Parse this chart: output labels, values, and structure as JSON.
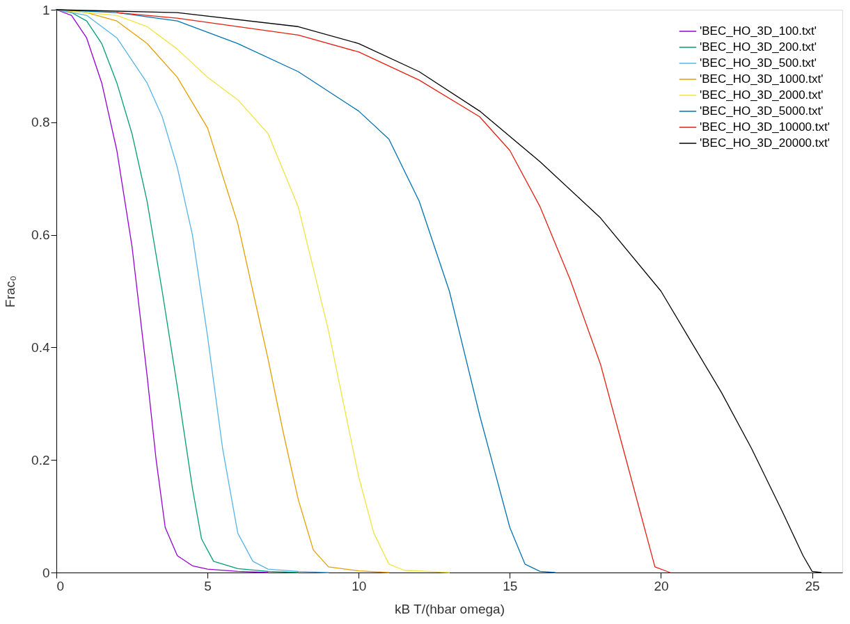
{
  "chart_data": {
    "type": "line",
    "xlabel": "kB T/(hbar omega)",
    "ylabel": "Frac₀",
    "xlim": [
      0,
      26
    ],
    "ylim": [
      0,
      1
    ],
    "xticks": [
      0,
      5,
      10,
      15,
      20,
      25
    ],
    "yticks": [
      0,
      0.2,
      0.4,
      0.6,
      0.8,
      1
    ],
    "legend": "top right",
    "series": [
      {
        "name": "'BEC_HO_3D_100.txt'",
        "color": "#9400d3",
        "x": [
          0,
          0.5,
          1,
          1.5,
          2,
          2.5,
          3,
          3.3,
          3.6,
          4,
          4.5,
          5,
          6,
          7
        ],
        "values": [
          1,
          0.99,
          0.95,
          0.87,
          0.75,
          0.58,
          0.35,
          0.2,
          0.08,
          0.03,
          0.012,
          0.006,
          0.002,
          0
        ]
      },
      {
        "name": "'BEC_HO_3D_200.txt'",
        "color": "#009e73",
        "x": [
          0,
          0.5,
          1,
          1.5,
          2,
          2.5,
          3,
          3.5,
          4,
          4.5,
          4.8,
          5.2,
          6,
          7,
          8
        ],
        "values": [
          1,
          0.995,
          0.98,
          0.94,
          0.87,
          0.78,
          0.66,
          0.5,
          0.33,
          0.15,
          0.06,
          0.02,
          0.007,
          0.002,
          0
        ]
      },
      {
        "name": "'BEC_HO_3D_500.txt'",
        "color": "#56b4e9",
        "x": [
          0,
          1,
          2,
          3,
          3.5,
          4,
          4.5,
          5,
          5.5,
          6,
          6.5,
          7,
          8,
          9
        ],
        "values": [
          1,
          0.99,
          0.95,
          0.87,
          0.81,
          0.72,
          0.6,
          0.42,
          0.22,
          0.07,
          0.02,
          0.006,
          0.002,
          0
        ]
      },
      {
        "name": "'BEC_HO_3D_1000.txt'",
        "color": "#e69f00",
        "x": [
          0,
          1,
          2,
          3,
          4,
          5,
          6,
          7,
          7.5,
          8,
          8.5,
          9,
          10,
          11
        ],
        "values": [
          1,
          0.995,
          0.98,
          0.94,
          0.88,
          0.79,
          0.62,
          0.38,
          0.25,
          0.13,
          0.04,
          0.01,
          0.003,
          0
        ]
      },
      {
        "name": "'BEC_HO_3D_2000.txt'",
        "color": "#f0e442",
        "x": [
          0,
          2,
          3,
          4,
          5,
          6,
          7,
          8,
          9,
          9.5,
          10,
          10.5,
          11,
          11.5,
          13
        ],
        "values": [
          1,
          0.99,
          0.97,
          0.93,
          0.88,
          0.84,
          0.78,
          0.65,
          0.43,
          0.3,
          0.17,
          0.07,
          0.015,
          0.004,
          0
        ]
      },
      {
        "name": "'BEC_HO_3D_5000.txt'",
        "color": "#0072b2",
        "x": [
          0,
          2,
          4,
          6,
          8,
          10,
          11,
          12,
          13,
          14,
          14.5,
          15,
          15.5,
          16,
          16.5
        ],
        "values": [
          1,
          0.995,
          0.98,
          0.94,
          0.89,
          0.82,
          0.77,
          0.66,
          0.5,
          0.28,
          0.18,
          0.08,
          0.015,
          0.002,
          0
        ]
      },
      {
        "name": "'BEC_HO_3D_10000.txt'",
        "color": "#e51e10",
        "x": [
          2,
          4,
          8,
          10,
          12,
          14,
          15,
          16,
          17,
          18,
          19,
          19.5,
          19.8,
          20.3
        ],
        "values": [
          0.995,
          0.985,
          0.955,
          0.925,
          0.875,
          0.81,
          0.75,
          0.65,
          0.52,
          0.37,
          0.17,
          0.07,
          0.01,
          0
        ]
      },
      {
        "name": "'BEC_HO_3D_20000.txt'",
        "color": "#000000",
        "x": [
          0,
          4,
          8,
          10,
          12,
          14,
          16,
          18,
          20,
          21,
          22,
          23,
          24,
          24.7,
          25,
          25.3
        ],
        "values": [
          1,
          0.995,
          0.97,
          0.94,
          0.89,
          0.82,
          0.73,
          0.63,
          0.5,
          0.41,
          0.32,
          0.22,
          0.11,
          0.03,
          0.002,
          0
        ]
      }
    ]
  }
}
